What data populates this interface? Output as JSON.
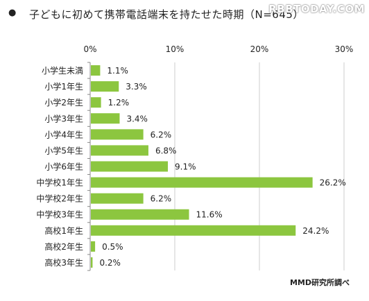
{
  "header": {
    "bullet": "●",
    "title": "子どもに初めて携帯電話端末を持たせた時期（N=645）",
    "watermark": "RBBTODAY.COM"
  },
  "chart_data": {
    "type": "bar",
    "orientation": "horizontal",
    "categories": [
      "小学生未満",
      "小学1年生",
      "小学2年生",
      "小学3年生",
      "小学4年生",
      "小学5年生",
      "小学6年生",
      "中学校1年生",
      "中学校2年生",
      "中学校3年生",
      "高校1年生",
      "高校2年生",
      "高校3年生"
    ],
    "values": [
      1.1,
      3.3,
      1.2,
      3.4,
      6.2,
      6.8,
      9.1,
      26.2,
      6.2,
      11.6,
      24.2,
      0.5,
      0.2
    ],
    "value_labels": [
      "1.1%",
      "3.3%",
      "1.2%",
      "3.4%",
      "6.2%",
      "6.8%",
      "9.1%",
      "26.2%",
      "6.2%",
      "11.6%",
      "24.2%",
      "0.5%",
      "0.2%"
    ],
    "xlim": [
      0,
      30
    ],
    "xticks": [
      0,
      10,
      20,
      30
    ],
    "xtick_labels": [
      "0%",
      "10%",
      "20%",
      "30%"
    ],
    "grid": true,
    "bar_color": "#8cc63f",
    "grid_color": "#cccccc"
  },
  "footer": {
    "credit": "MMD研究所調べ"
  }
}
